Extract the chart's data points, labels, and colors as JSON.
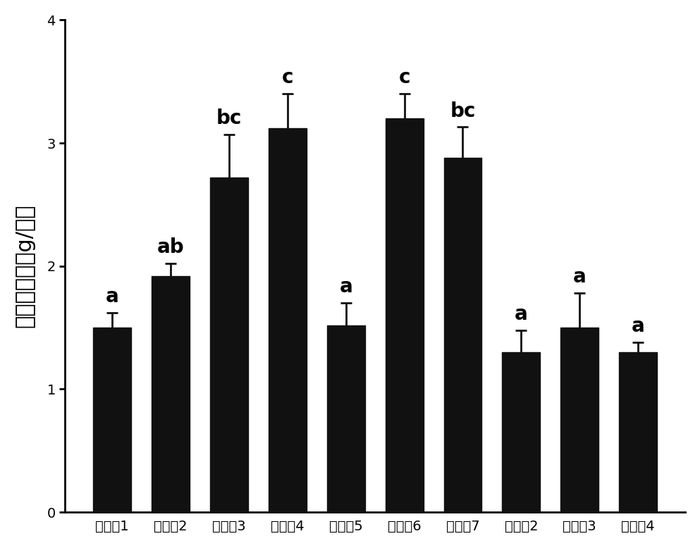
{
  "categories": [
    "对比例1",
    "实施例2",
    "实施例3",
    "实施例4",
    "实施例5",
    "实施例6",
    "实施例7",
    "对比例2",
    "对比例3",
    "对比例4"
  ],
  "values": [
    1.5,
    1.92,
    2.72,
    3.12,
    1.52,
    3.2,
    2.88,
    1.3,
    1.5,
    1.3
  ],
  "errors": [
    0.12,
    0.1,
    0.35,
    0.28,
    0.18,
    0.2,
    0.25,
    0.18,
    0.28,
    0.08
  ],
  "labels": [
    "a",
    "ab",
    "bc",
    "c",
    "a",
    "c",
    "bc",
    "a",
    "a",
    "a"
  ],
  "bar_color": "#111111",
  "error_color": "#111111",
  "ylabel": "生物量干重（g/株）",
  "ylim": [
    0,
    4
  ],
  "yticks": [
    0,
    1,
    2,
    3,
    4
  ],
  "background_color": "#ffffff",
  "bar_width": 0.65,
  "label_fontsize": 20,
  "tick_fontsize": 14,
  "ylabel_fontsize": 22,
  "figsize": [
    9.93,
    7.78
  ],
  "dpi": 100
}
